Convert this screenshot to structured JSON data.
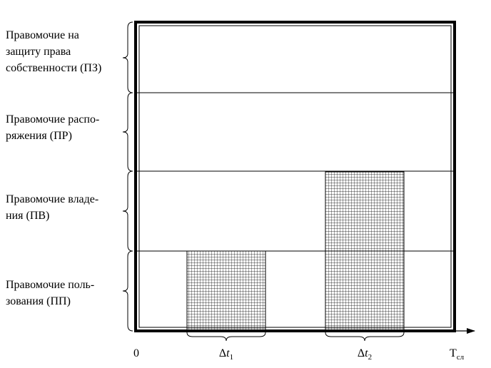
{
  "rows": [
    {
      "lines": [
        "Правомочие на",
        "защиту права",
        "собственности (ПЗ)"
      ]
    },
    {
      "lines": [
        "Правомочие распо-",
        "ряжения  (ПР)"
      ]
    },
    {
      "lines": [
        "Правомочие владе-",
        "ния (ПВ)"
      ]
    },
    {
      "lines": [
        "Правомочие поль-",
        "зования (ПП)"
      ]
    }
  ],
  "axis": {
    "origin": "0",
    "intervals": [
      {
        "symbol": "Δ",
        "var": "t",
        "sub": "1"
      },
      {
        "symbol": "Δ",
        "var": "t",
        "sub": "2"
      }
    ],
    "end": {
      "var": "T",
      "sub": "сл"
    }
  }
}
